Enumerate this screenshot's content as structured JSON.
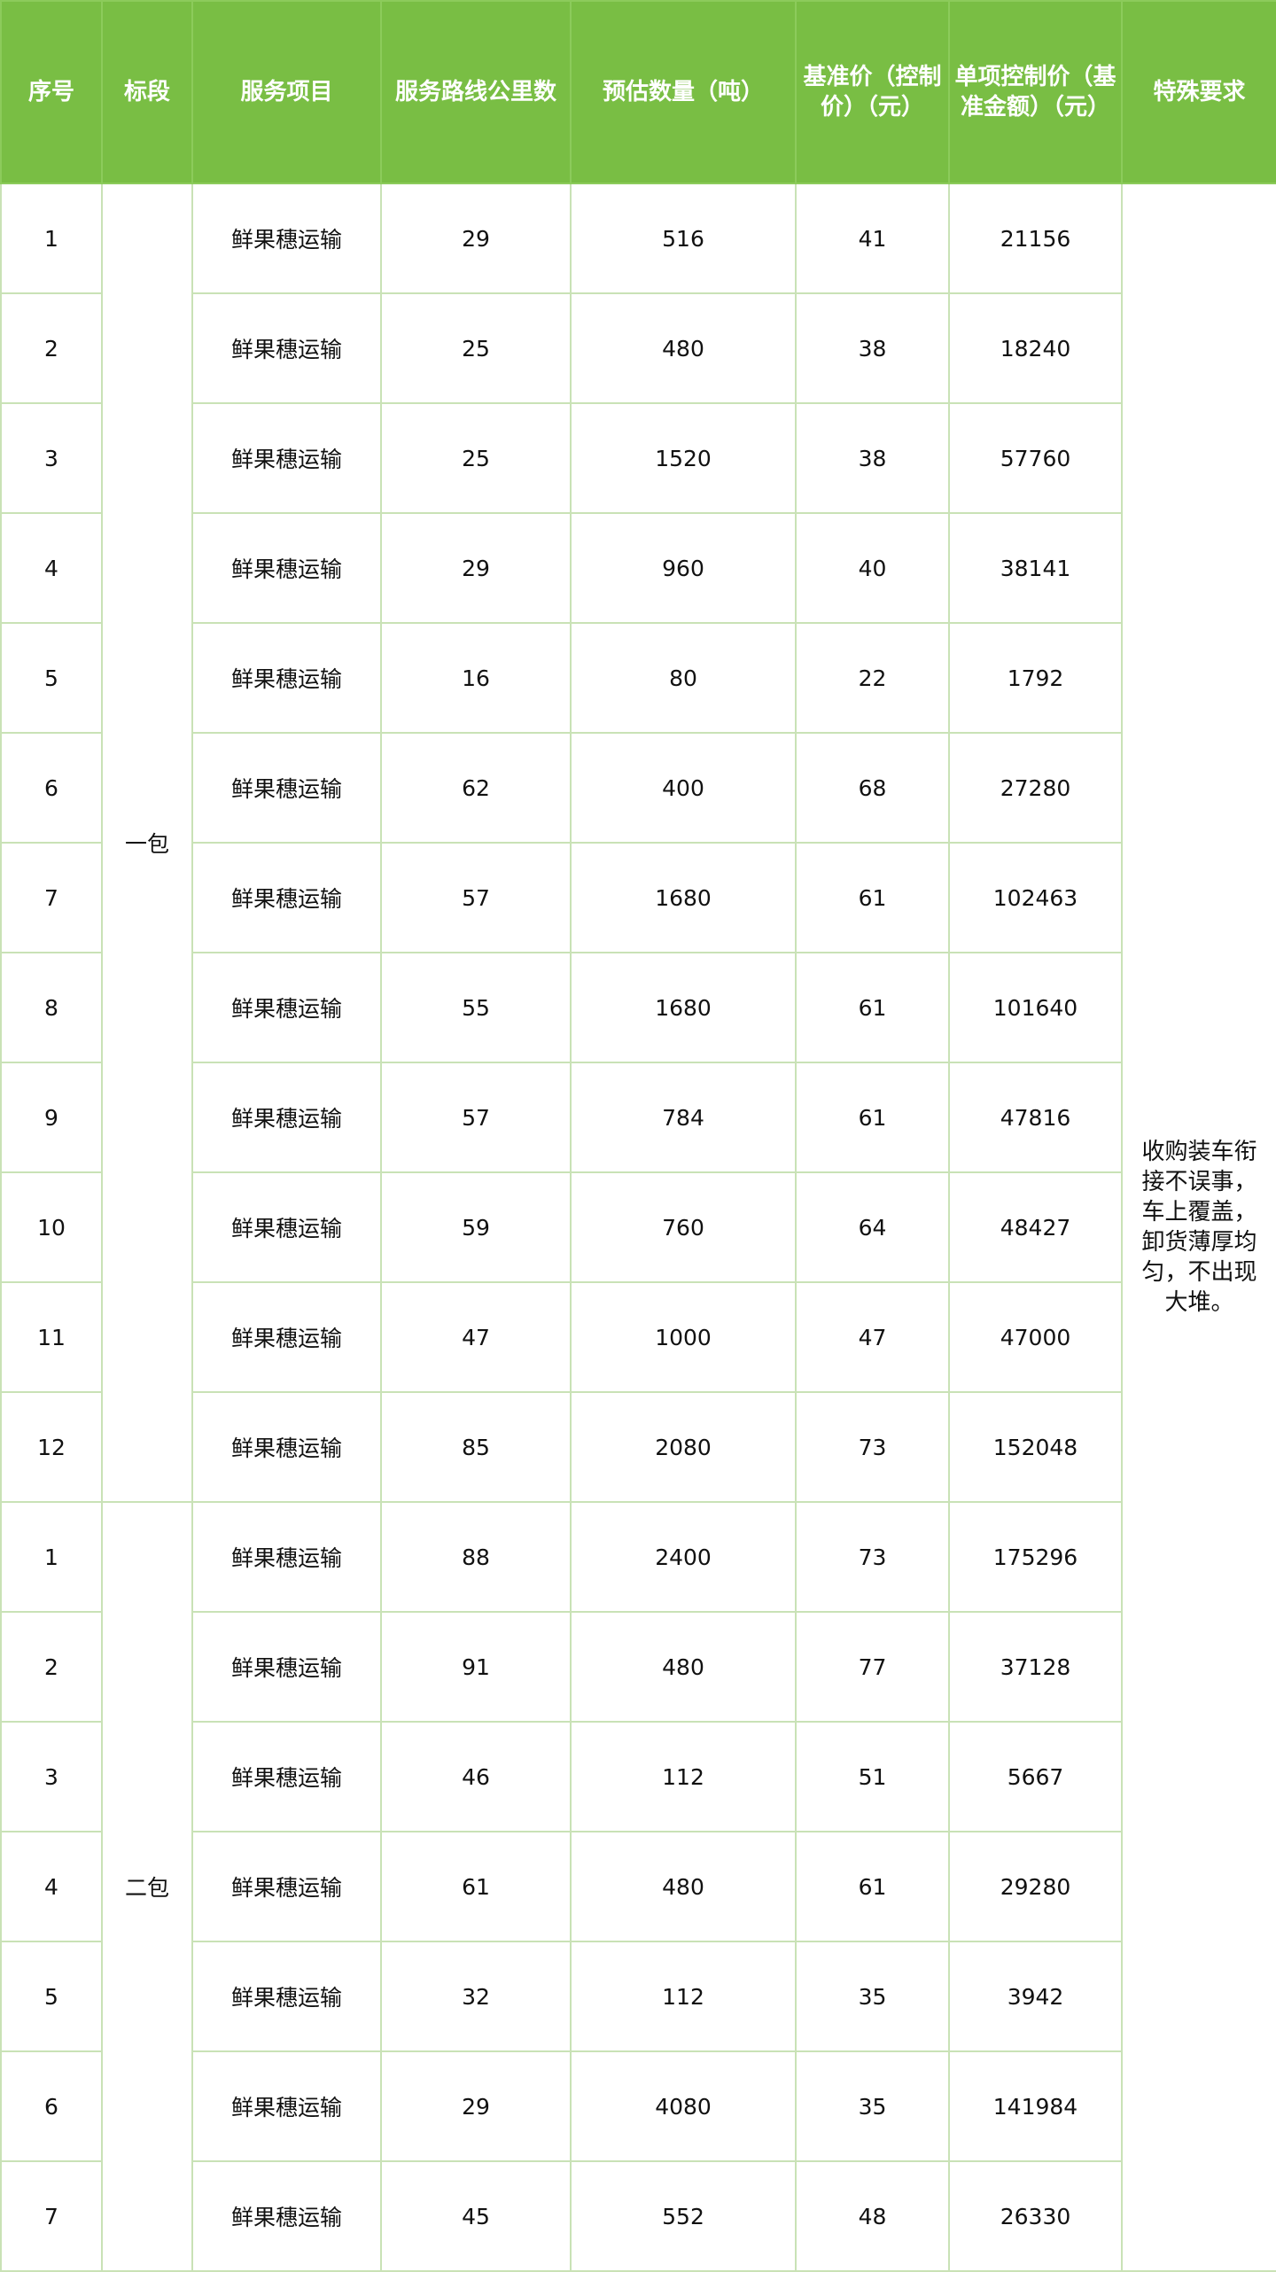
{
  "headers": [
    "序号",
    "标段",
    "服务项目",
    "服务路线公里数",
    "预估数量（吨）",
    "基准价（控制价）（元）",
    "单项控制价（基准金额）（元）",
    "特殊要求"
  ],
  "special_requirement": "收购装车衔接不误事，车上覆盖，卸货薄厚均匀，不出现大堆。",
  "colors": {
    "header_bg": "#79be44",
    "header_text": "#ffffff",
    "border": "#c9e2b6"
  },
  "packages": [
    {
      "name": "一包",
      "rows": [
        [
          "1",
          "鲜果穗运输",
          "29",
          "516",
          "41",
          "21156"
        ],
        [
          "2",
          "鲜果穗运输",
          "25",
          "480",
          "38",
          "18240"
        ],
        [
          "3",
          "鲜果穗运输",
          "25",
          "1520",
          "38",
          "57760"
        ],
        [
          "4",
          "鲜果穗运输",
          "29",
          "960",
          "40",
          "38141"
        ],
        [
          "5",
          "鲜果穗运输",
          "16",
          "80",
          "22",
          "1792"
        ],
        [
          "6",
          "鲜果穗运输",
          "62",
          "400",
          "68",
          "27280"
        ],
        [
          "7",
          "鲜果穗运输",
          "57",
          "1680",
          "61",
          "102463"
        ],
        [
          "8",
          "鲜果穗运输",
          "55",
          "1680",
          "61",
          "101640"
        ],
        [
          "9",
          "鲜果穗运输",
          "57",
          "784",
          "61",
          "47816"
        ],
        [
          "10",
          "鲜果穗运输",
          "59",
          "760",
          "64",
          "48427"
        ],
        [
          "11",
          "鲜果穗运输",
          "47",
          "1000",
          "47",
          "47000"
        ],
        [
          "12",
          "鲜果穗运输",
          "85",
          "2080",
          "73",
          "152048"
        ]
      ]
    },
    {
      "name": "二包",
      "rows": [
        [
          "1",
          "鲜果穗运输",
          "88",
          "2400",
          "73",
          "175296"
        ],
        [
          "2",
          "鲜果穗运输",
          "91",
          "480",
          "77",
          "37128"
        ],
        [
          "3",
          "鲜果穗运输",
          "46",
          "112",
          "51",
          "5667"
        ],
        [
          "4",
          "鲜果穗运输",
          "61",
          "480",
          "61",
          "29280"
        ],
        [
          "5",
          "鲜果穗运输",
          "32",
          "112",
          "35",
          "3942"
        ],
        [
          "6",
          "鲜果穗运输",
          "29",
          "4080",
          "35",
          "141984"
        ],
        [
          "7",
          "鲜果穗运输",
          "45",
          "552",
          "48",
          "26330"
        ]
      ]
    }
  ]
}
